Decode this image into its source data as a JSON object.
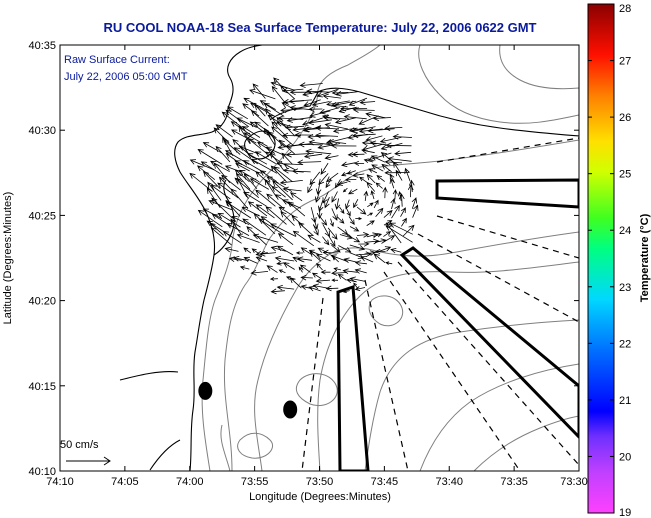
{
  "chart_data": {
    "type": "vector-field",
    "title": "RU COOL  NOAA-18  Sea Surface Temperature:  July 22, 2006 0622 GMT",
    "annotation_lines": [
      "Raw Surface Current:",
      "July 22, 2006 05:00 GMT"
    ],
    "xlabel": "Longitude (Degrees:Minutes)",
    "ylabel": "Latitude (Degrees:Minutes)",
    "x_ticks": [
      "74:10",
      "74:05",
      "74:00",
      "73:55",
      "73:50",
      "73:45",
      "73:40",
      "73:35",
      "73:30"
    ],
    "y_ticks": [
      "40:10",
      "40:15",
      "40:20",
      "40:25",
      "40:30",
      "40:35"
    ],
    "xlim": [
      -74.1667,
      -73.5
    ],
    "ylim": [
      40.1667,
      40.5833
    ],
    "colorbar": {
      "label": "Temperature (°C)",
      "ticks": [
        "19",
        "20",
        "21",
        "22",
        "23",
        "24",
        "25",
        "26",
        "27",
        "28"
      ],
      "range": [
        19,
        28
      ],
      "colormap": "jet-like (magenta-blue-cyan-green-yellow-orange-red-darkred)"
    },
    "scale_arrow": {
      "label": "50 cm/s",
      "speed_cm_s": 50
    },
    "current_vectors": {
      "speed_units": "cm/s",
      "description": "Raw surface current vectors, generally flowing toward the west/northwest, with a cyclonic eddy near 73:47W 40:26N",
      "region": {
        "lon_range": [
          -73.98,
          -73.7
        ],
        "lat_range": [
          40.35,
          40.52
        ]
      },
      "eddy_center": {
        "lon": -73.78,
        "lat": 40.43
      }
    },
    "markers": [
      {
        "lon": -73.98,
        "lat": 40.245
      },
      {
        "lon": -73.871,
        "lat": 40.2268
      }
    ],
    "colors": {
      "title": "#0a1a9c",
      "annotation": "#0a1a9c",
      "coast": "#000000",
      "contours": "#7f7f7f"
    }
  }
}
